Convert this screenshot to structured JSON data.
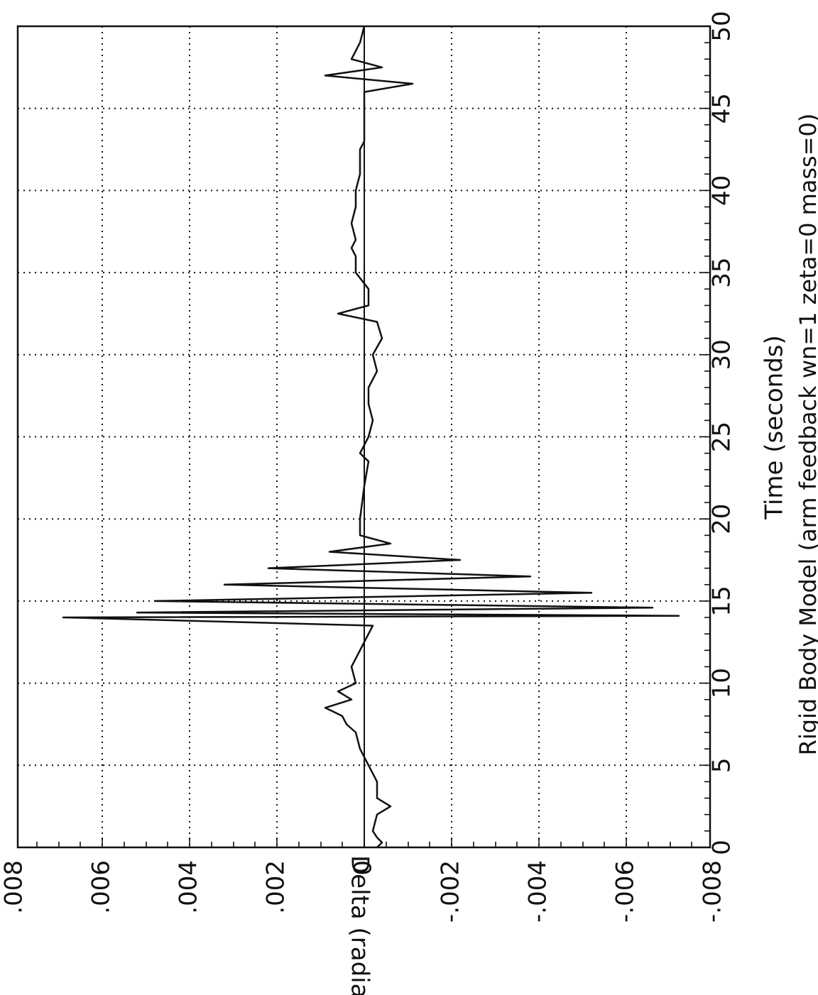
{
  "chart_data": {
    "type": "line",
    "orientation": "rotated-90",
    "title": "",
    "xlabel": "Time (seconds)",
    "ylabel": "Delta (radians)",
    "caption": "Rigid Body Model (arm feedback wn=1 zeta=0 mass=0)",
    "xlim": [
      0,
      50
    ],
    "ylim": [
      -0.008,
      0.008
    ],
    "grid": true,
    "x_ticks": [
      {
        "value": 0,
        "label": "0"
      },
      {
        "value": 5,
        "label": "5"
      },
      {
        "value": 10,
        "label": "10"
      },
      {
        "value": 15,
        "label": "15"
      },
      {
        "value": 20,
        "label": "20"
      },
      {
        "value": 25,
        "label": "25"
      },
      {
        "value": 30,
        "label": "30"
      },
      {
        "value": 35,
        "label": "35"
      },
      {
        "value": 40,
        "label": "40"
      },
      {
        "value": 45,
        "label": "45"
      },
      {
        "value": 50,
        "label": "50"
      }
    ],
    "y_ticks": [
      {
        "value": 0.008,
        "label": ".008"
      },
      {
        "value": 0.006,
        "label": ".006"
      },
      {
        "value": 0.004,
        "label": ".004"
      },
      {
        "value": 0.002,
        "label": ".002"
      },
      {
        "value": 0,
        "label": "0"
      },
      {
        "value": -0.002,
        "label": "-.002"
      },
      {
        "value": -0.004,
        "label": "-.004"
      },
      {
        "value": -0.006,
        "label": "-.006"
      },
      {
        "value": -0.008,
        "label": "-.008"
      }
    ],
    "series": [
      {
        "color": "#111111",
        "x": [
          0,
          0.3,
          0.6,
          1,
          2,
          2.5,
          3,
          4,
          5,
          6,
          7,
          7.5,
          8,
          8.5,
          9,
          9.5,
          10,
          11,
          12,
          13,
          13.5,
          14,
          14.1,
          14.3,
          14.6,
          15,
          15.5,
          16,
          16.5,
          17,
          17.5,
          18,
          18.5,
          19,
          20,
          22,
          23.5,
          24,
          25,
          26,
          27,
          28,
          29,
          30,
          31,
          32,
          32.5,
          33,
          34,
          35,
          36,
          36.5,
          37,
          38,
          39,
          40,
          41,
          42,
          42.5,
          43,
          44,
          45,
          46,
          46.5,
          47,
          47.5,
          48,
          49,
          50
        ],
        "y": [
          -0.0003,
          -0.0004,
          -0.0003,
          -0.0002,
          -0.0003,
          -0.0006,
          -0.0003,
          -0.0003,
          -0.0001,
          0.0001,
          0.0002,
          0.0004,
          0.0005,
          0.0009,
          0.0003,
          0.0006,
          0.0002,
          0.0003,
          0.0001,
          -0.0001,
          -0.0002,
          0.0069,
          -0.0072,
          0.0052,
          -0.0066,
          0.0048,
          -0.0052,
          0.0032,
          -0.0038,
          0.0022,
          -0.0022,
          0.0008,
          -0.0006,
          0.0001,
          0.0001,
          0.0,
          -0.0001,
          0.0001,
          -0.0001,
          -0.0002,
          -0.0001,
          -0.0001,
          -0.0003,
          -0.0002,
          -0.0004,
          -0.0003,
          0.0006,
          -0.0001,
          -0.0001,
          0.0002,
          0.0002,
          0.0003,
          0.0002,
          0.0003,
          0.0002,
          0.0002,
          0.0001,
          0.0001,
          0.0001,
          0.0,
          0.0,
          0.0,
          0.0,
          -0.0011,
          0.0009,
          -0.0004,
          0.0003,
          0.0001,
          0.0
        ]
      }
    ]
  }
}
